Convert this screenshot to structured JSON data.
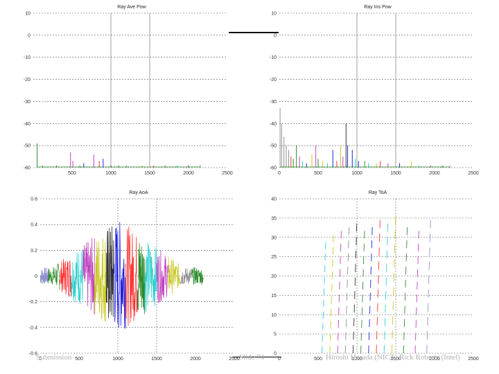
{
  "footer": {
    "left": "Submission",
    "center": "Slide 74",
    "right": "Hiroshi Harada (NICT) Rick Roberts (Intel)"
  },
  "series_colors": [
    "#2e8b2e",
    "#ff3030",
    "#30d0d0",
    "#c040c0",
    "#c8c820",
    "#303030",
    "#2020e0",
    "#909090",
    "#9090d0"
  ],
  "chart_data": [
    {
      "type": "line",
      "title": "Ray Ave Pow",
      "xlim": [
        0,
        2500
      ],
      "ylim": [
        -60,
        10
      ],
      "x_ticks": [
        0,
        500,
        1000,
        1500,
        2000,
        2500
      ],
      "y_ticks": [
        10,
        0,
        -10,
        -20,
        -30,
        -40,
        -50,
        -60
      ],
      "x_tick_labels": [
        "",
        "500",
        "1000",
        "1500",
        "2000",
        "2500"
      ],
      "y_tick_labels": [
        "10",
        "0",
        "-10",
        "-20",
        "-30",
        "-40",
        "-50",
        "-60"
      ],
      "vlines": [
        1000,
        1500
      ],
      "grid": "horizontal-dotted",
      "spikes": [
        [
          50,
          -49,
          0
        ],
        [
          120,
          -59,
          0
        ],
        [
          300,
          -59,
          0
        ],
        [
          480,
          -53,
          3
        ],
        [
          510,
          -57,
          3
        ],
        [
          600,
          -59,
          0
        ],
        [
          650,
          -58,
          6
        ],
        [
          780,
          -54,
          3
        ],
        [
          850,
          -57,
          1
        ],
        [
          900,
          -56,
          6
        ],
        [
          1000,
          -59,
          5
        ],
        [
          1100,
          -59,
          0
        ],
        [
          1200,
          -59,
          7
        ],
        [
          1400,
          -59,
          4
        ],
        [
          1550,
          -59,
          1
        ],
        [
          1700,
          -59,
          3
        ],
        [
          1850,
          -59,
          2
        ],
        [
          2000,
          -59,
          6
        ],
        [
          2150,
          -59,
          0
        ]
      ]
    },
    {
      "type": "line",
      "title": "Ray Ins Pow",
      "xlim": [
        0,
        2500
      ],
      "ylim": [
        -60,
        10
      ],
      "x_ticks": [
        0,
        500,
        1000,
        1500,
        2000,
        2500
      ],
      "y_ticks": [
        10,
        0,
        -10,
        -20,
        -30,
        -40,
        -50,
        -60
      ],
      "x_tick_labels": [
        "0",
        "500",
        "1000",
        "1500",
        "2000",
        "2500"
      ],
      "y_tick_labels": [
        "10",
        "0",
        "-10",
        "-20",
        "-30",
        "-40",
        "-50",
        "-60"
      ],
      "vlines": [
        1000,
        1500
      ],
      "grid": "horizontal-dotted",
      "spikes": [
        [
          10,
          -33,
          7
        ],
        [
          30,
          -40,
          7
        ],
        [
          60,
          -46,
          7
        ],
        [
          90,
          -50,
          7
        ],
        [
          120,
          -52,
          7
        ],
        [
          150,
          -55,
          1
        ],
        [
          180,
          -56,
          0
        ],
        [
          220,
          -50,
          0
        ],
        [
          260,
          -55,
          3
        ],
        [
          300,
          -57,
          2
        ],
        [
          350,
          -58,
          6
        ],
        [
          420,
          -54,
          4
        ],
        [
          470,
          -50,
          3
        ],
        [
          500,
          -56,
          0
        ],
        [
          560,
          -57,
          4
        ],
        [
          620,
          -58,
          2
        ],
        [
          690,
          -52,
          6
        ],
        [
          740,
          -57,
          1
        ],
        [
          790,
          -50,
          4
        ],
        [
          820,
          -55,
          3
        ],
        [
          860,
          -40,
          5
        ],
        [
          880,
          -50,
          6
        ],
        [
          940,
          -52,
          6
        ],
        [
          980,
          -56,
          2
        ],
        [
          1020,
          -57,
          6
        ],
        [
          1100,
          -57,
          0
        ],
        [
          1150,
          -58,
          2
        ],
        [
          1250,
          -58,
          4
        ],
        [
          1300,
          -57,
          1
        ],
        [
          1400,
          -58,
          3
        ],
        [
          1550,
          -58,
          6
        ],
        [
          1700,
          -57,
          4
        ],
        [
          1800,
          -59,
          2
        ],
        [
          1950,
          -59,
          3
        ],
        [
          2100,
          -59,
          0
        ],
        [
          2200,
          -59,
          7
        ]
      ]
    },
    {
      "type": "line",
      "title": "Ray AoA",
      "xlim": [
        0,
        2500
      ],
      "ylim": [
        -0.6,
        0.6
      ],
      "x_ticks": [
        0,
        500,
        1000,
        1500,
        2000,
        2500
      ],
      "y_ticks": [
        0.6,
        0.4,
        0.2,
        0,
        -0.2,
        -0.4,
        -0.6
      ],
      "x_tick_labels": [
        "0",
        "500",
        "1000",
        "1500",
        "2000",
        "2500"
      ],
      "y_tick_labels": [
        "0.6",
        "0.4",
        "0.2",
        "0",
        "-0.2",
        "-0.4",
        "-0.6"
      ],
      "vlines": [
        1000,
        1500
      ],
      "grid": "horizontal-dotted",
      "segments": [
        {
          "x": [
            0,
            100
          ],
          "color": 8
        },
        {
          "x": [
            100,
            250
          ],
          "color": 0
        },
        {
          "x": [
            250,
            400
          ],
          "color": 1
        },
        {
          "x": [
            400,
            550
          ],
          "color": 2
        },
        {
          "x": [
            550,
            700
          ],
          "color": 3
        },
        {
          "x": [
            700,
            850
          ],
          "color": 4
        },
        {
          "x": [
            850,
            950
          ],
          "color": 5
        },
        {
          "x": [
            950,
            1100
          ],
          "color": 6
        },
        {
          "x": [
            1100,
            1250
          ],
          "color": 1
        },
        {
          "x": [
            1250,
            1350
          ],
          "color": 0
        },
        {
          "x": [
            1350,
            1500
          ],
          "color": 2
        },
        {
          "x": [
            1500,
            1650
          ],
          "color": 3
        },
        {
          "x": [
            1650,
            1800
          ],
          "color": 4
        },
        {
          "x": [
            1800,
            1950
          ],
          "color": 7
        },
        {
          "x": [
            1950,
            2100
          ],
          "color": 0
        }
      ]
    },
    {
      "type": "scatter",
      "title": "Ray ToA",
      "xlim": [
        0,
        2500
      ],
      "ylim": [
        0,
        40
      ],
      "x_ticks": [
        0,
        500,
        1000,
        1500,
        2000,
        2500
      ],
      "y_ticks": [
        40,
        35,
        30,
        25,
        20,
        15,
        10,
        5,
        0
      ],
      "x_tick_labels": [
        "0",
        "500",
        "1000",
        "1500",
        "2000",
        "2500"
      ],
      "y_tick_labels": [
        "40",
        "35",
        "30",
        "25",
        "20",
        "15",
        "10",
        "5",
        "0"
      ],
      "vlines": [
        1000,
        1500
      ],
      "grid": "horizontal-dotted",
      "ramps": [
        {
          "x": [
            550,
            600
          ],
          "y": [
            0,
            30
          ],
          "color": 2
        },
        {
          "x": [
            650,
            700
          ],
          "y": [
            0,
            32
          ],
          "color": 4
        },
        {
          "x": [
            750,
            800
          ],
          "y": [
            0,
            33
          ],
          "color": 3
        },
        {
          "x": [
            850,
            900
          ],
          "y": [
            0,
            34
          ],
          "color": 7
        },
        {
          "x": [
            950,
            1000
          ],
          "y": [
            0,
            35
          ],
          "color": 5
        },
        {
          "x": [
            1050,
            1100
          ],
          "y": [
            0,
            33
          ],
          "color": 0
        },
        {
          "x": [
            1150,
            1200
          ],
          "y": [
            0,
            34
          ],
          "color": 6
        },
        {
          "x": [
            1250,
            1300
          ],
          "y": [
            0,
            36
          ],
          "color": 1
        },
        {
          "x": [
            1350,
            1400
          ],
          "y": [
            0,
            35
          ],
          "color": 2
        },
        {
          "x": [
            1450,
            1500
          ],
          "y": [
            0,
            37
          ],
          "color": 4
        },
        {
          "x": [
            1600,
            1650
          ],
          "y": [
            0,
            34
          ],
          "color": 0
        },
        {
          "x": [
            1750,
            1800
          ],
          "y": [
            0,
            33
          ],
          "color": 3
        },
        {
          "x": [
            1900,
            1950
          ],
          "y": [
            0,
            36
          ],
          "color": 8
        }
      ]
    }
  ]
}
